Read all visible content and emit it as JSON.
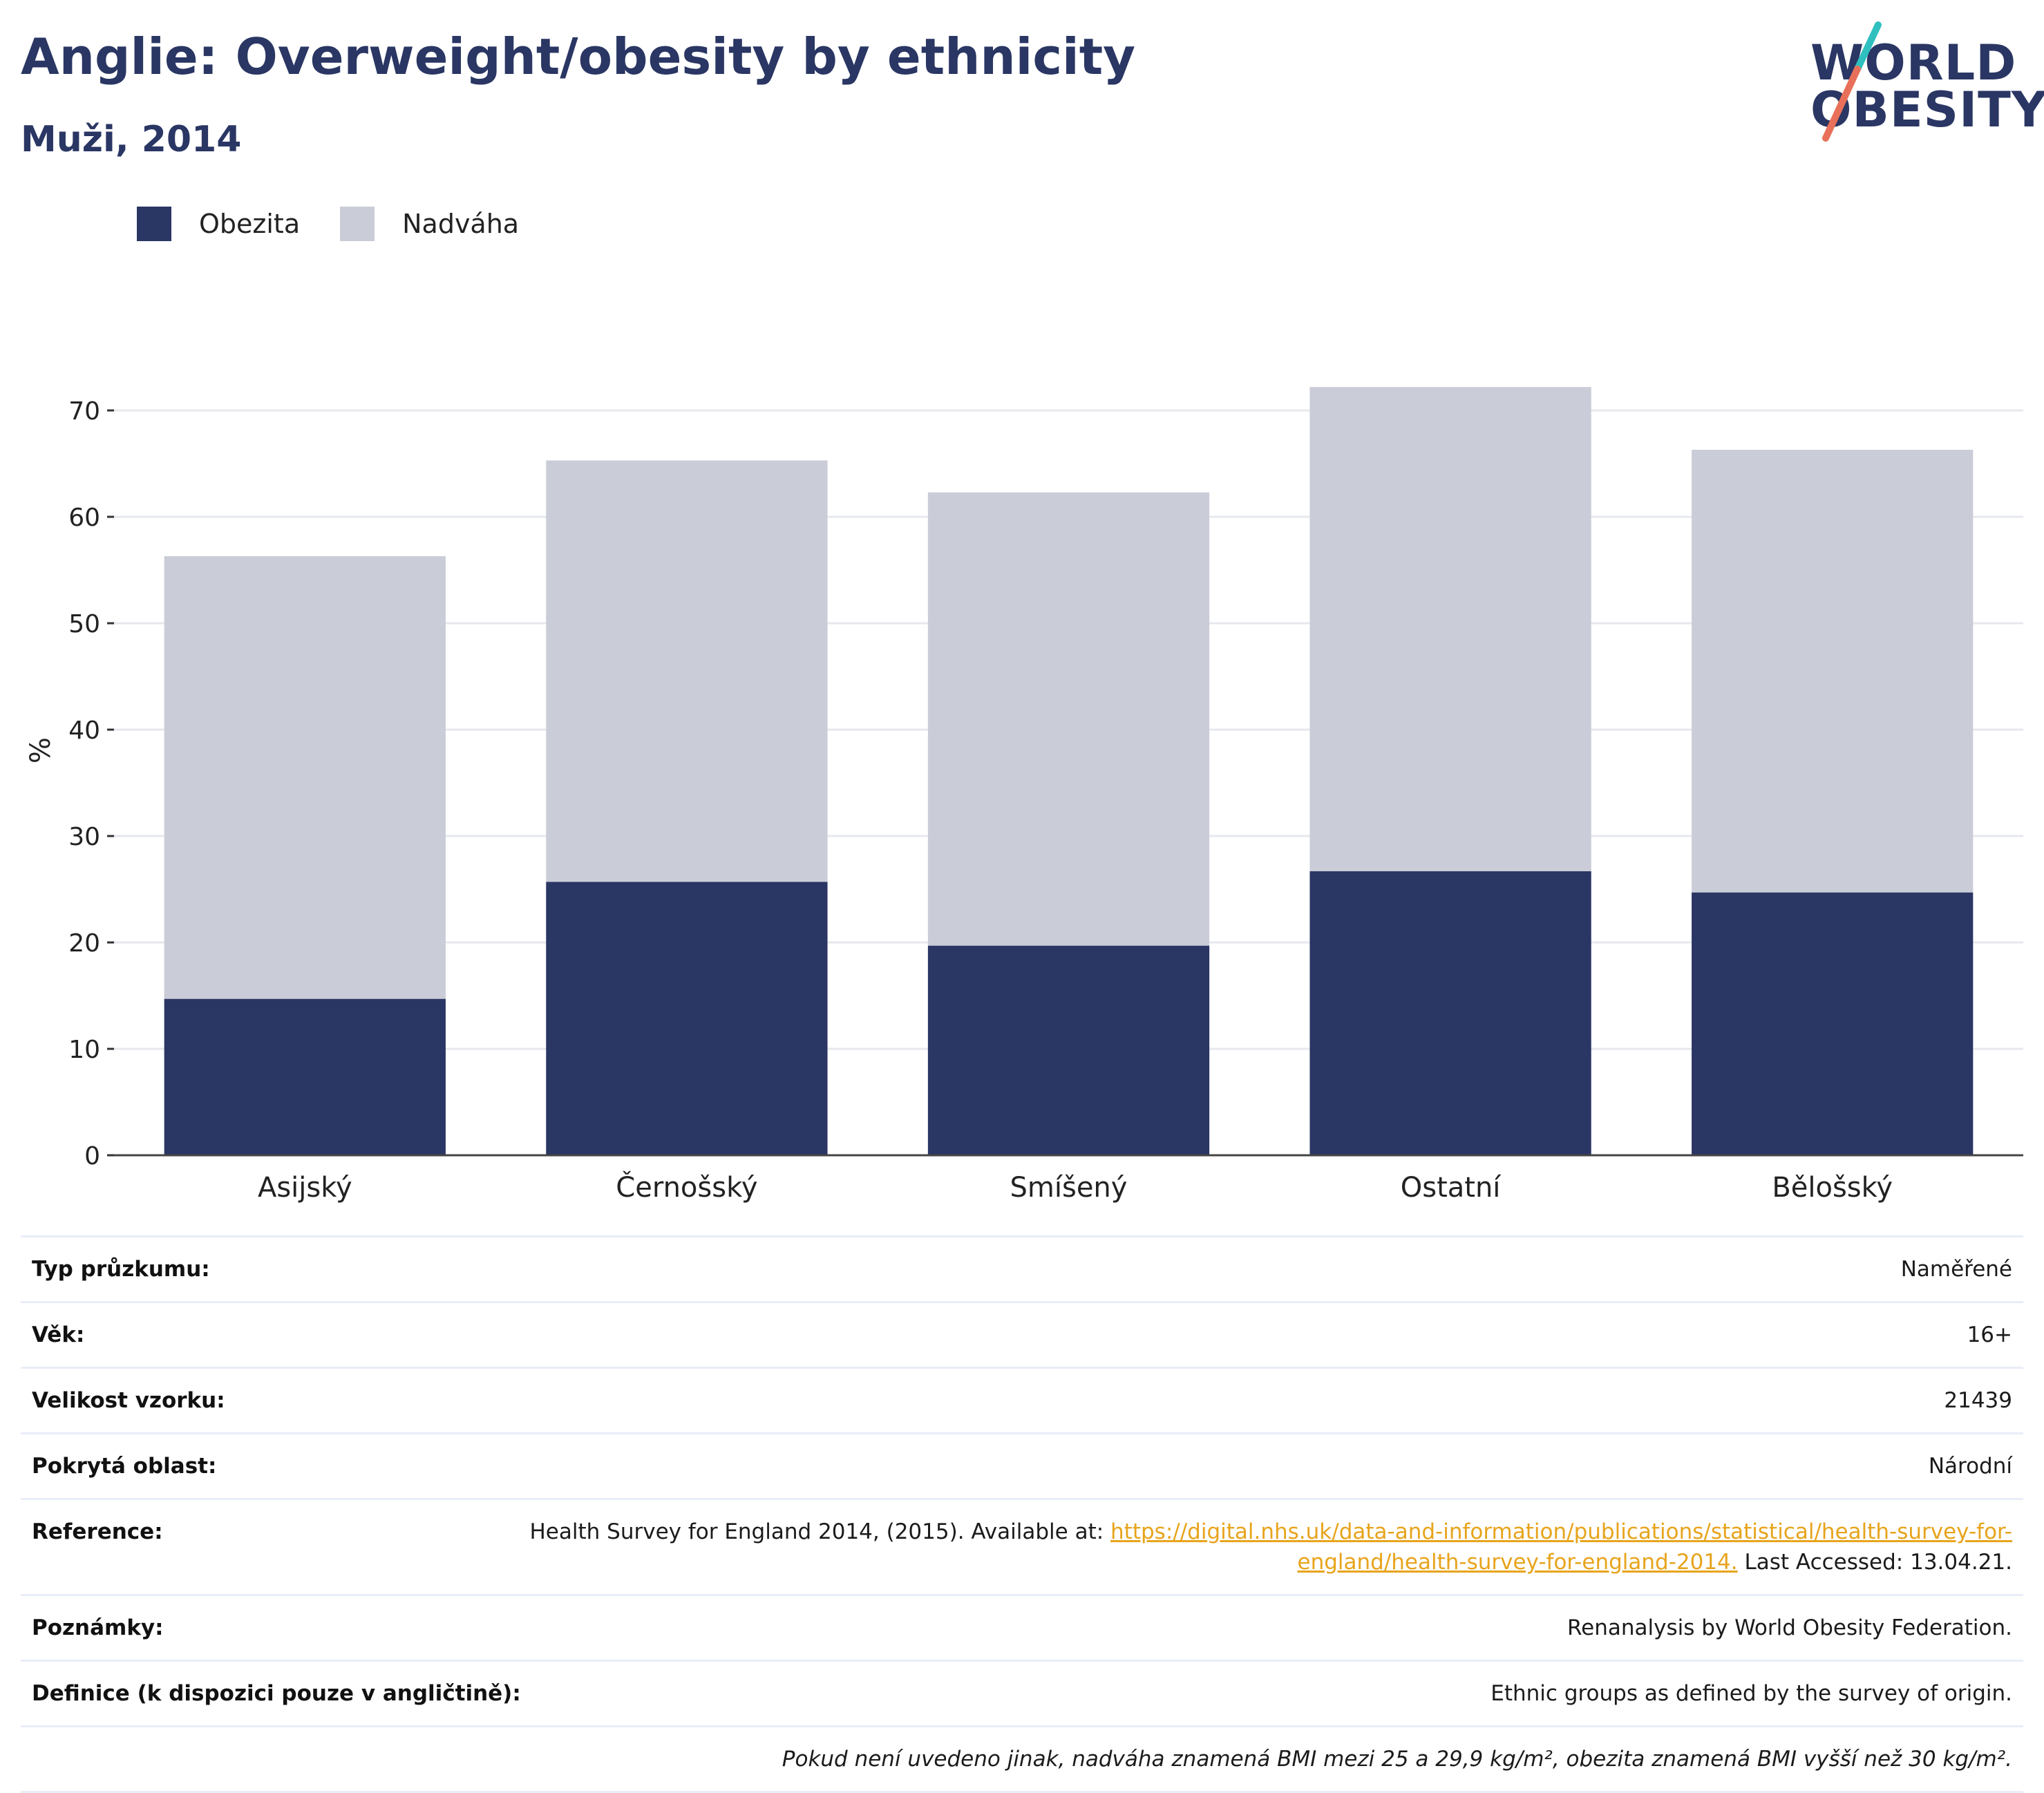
{
  "header": {
    "title": "Anglie: Overweight/obesity by ethnicity",
    "subtitle": "Muži, 2014"
  },
  "logo": {
    "line1": "WORLD",
    "line2": "OBESITY",
    "slash_colors": [
      "#2fbfbf",
      "#e8705a"
    ]
  },
  "legend": [
    {
      "label": "Obezita",
      "color": "#2a3663"
    },
    {
      "label": "Nadváha",
      "color": "#cacdd8"
    }
  ],
  "chart_data": {
    "type": "bar",
    "stacked": true,
    "categories": [
      "Asijský",
      "Černošský",
      "Smíšený",
      "Ostatní",
      "Bělošský"
    ],
    "series": [
      {
        "name": "Obezita",
        "values": [
          14.7,
          25.7,
          19.7,
          26.7,
          24.7
        ],
        "color": "#2a3663"
      },
      {
        "name": "Nadváha",
        "values": [
          41.6,
          39.6,
          42.6,
          45.5,
          41.6
        ],
        "color": "#cacdd8"
      }
    ],
    "ylabel": "%",
    "ylim": [
      0,
      75
    ],
    "yticks": [
      0,
      10,
      20,
      30,
      40,
      50,
      60,
      70
    ],
    "grid": true
  },
  "meta": {
    "rows": [
      {
        "label": "Typ průzkumu:",
        "value": "Naměřené"
      },
      {
        "label": "Věk:",
        "value": "16+"
      },
      {
        "label": "Velikost vzorku:",
        "value": "21439"
      },
      {
        "label": "Pokrytá oblast:",
        "value": "Národní"
      }
    ],
    "reference": {
      "label": "Reference:",
      "text_before": "Health Survey for England 2014, (2015). Available at: ",
      "link": "https://digital.nhs.uk/data-and-information/publications/statistical/health-survey-for-england/health-survey-for-england-2014.",
      "text_after": " Last Accessed: 13.04.21."
    },
    "notes": {
      "label": "Poznámky:",
      "value": "Renanalysis by World Obesity Federation."
    },
    "definition": {
      "label": "Definice (k dispozici pouze v angličtině):",
      "value": "Ethnic groups as defined by the survey of origin."
    },
    "footnote": "Pokud není uvedeno jinak, nadváha znamená BMI mezi 25 a 29,9 kg/m², obezita znamená BMI vyšší než 30 kg/m²."
  }
}
